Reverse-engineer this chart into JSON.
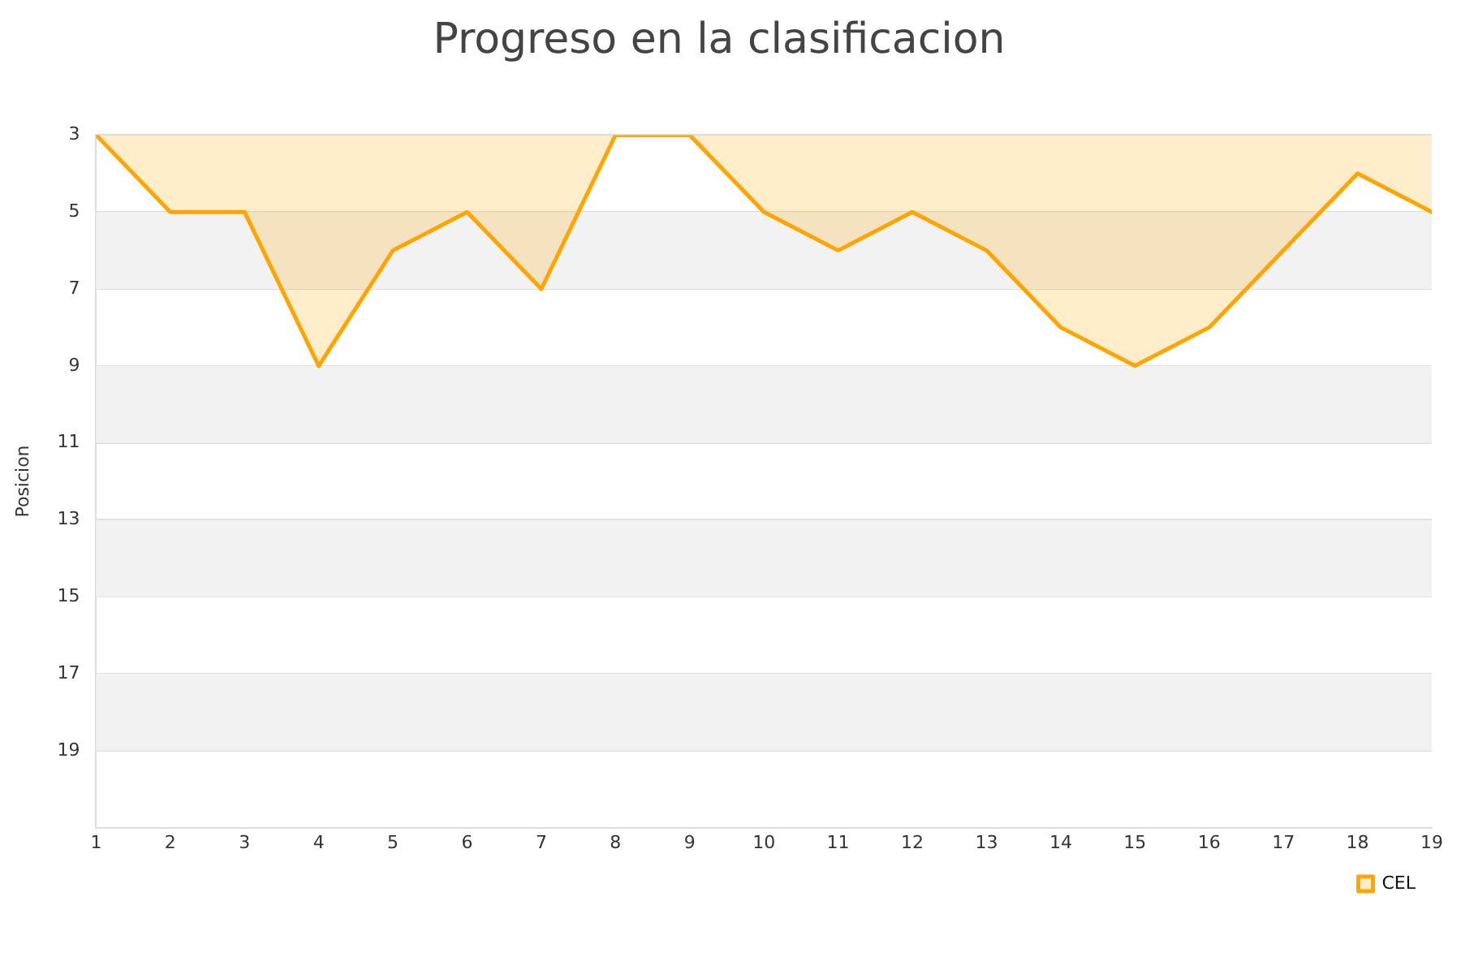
{
  "chart_data": {
    "type": "area",
    "title": "Progreso en la clasificacion",
    "ylabel": "Posicion",
    "x": [
      1,
      2,
      3,
      4,
      5,
      6,
      7,
      8,
      9,
      10,
      11,
      12,
      13,
      14,
      15,
      16,
      17,
      18,
      19
    ],
    "series": [
      {
        "name": "CEL",
        "color": "#ffa500",
        "values": [
          3,
          5,
          5,
          9,
          6,
          5,
          7,
          3,
          3,
          5,
          6,
          5,
          6,
          8,
          9,
          8,
          6,
          4,
          5
        ]
      }
    ],
    "xlim": [
      1,
      19
    ],
    "xticks": [
      1,
      2,
      3,
      4,
      5,
      6,
      7,
      8,
      9,
      10,
      11,
      12,
      13,
      14,
      15,
      16,
      17,
      18,
      19
    ],
    "ylim": [
      21,
      3
    ],
    "yticks": [
      3,
      5,
      7,
      9,
      11,
      13,
      15,
      17,
      19
    ],
    "bands": [
      {
        "axis": "y",
        "from": 5,
        "to": 7,
        "color": "#f2f2f2"
      },
      {
        "axis": "y",
        "from": 9,
        "to": 11,
        "color": "#f2f2f2"
      },
      {
        "axis": "y",
        "from": 13,
        "to": 15,
        "color": "#f2f2f2"
      },
      {
        "axis": "y",
        "from": 17,
        "to": 19,
        "color": "#f2f2f2"
      }
    ],
    "grid": "y",
    "legend": "bottom right",
    "marker": "none"
  }
}
